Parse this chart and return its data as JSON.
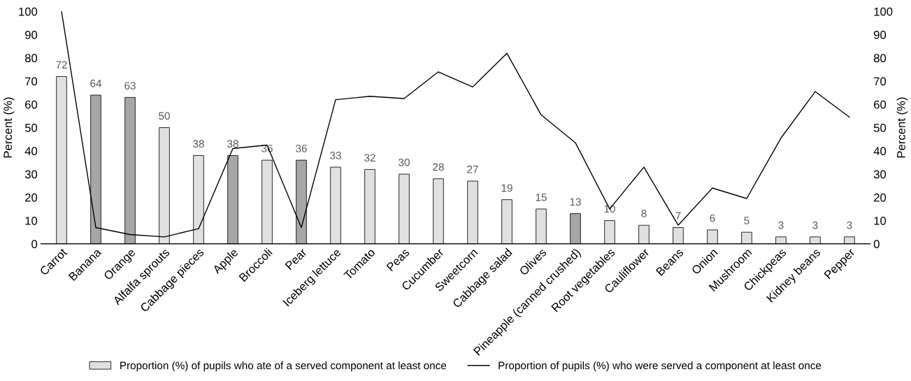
{
  "chart_data": {
    "type": "bar",
    "categories": [
      "Carrot",
      "Banana",
      "Orange",
      "Alfalfa sprouts",
      "Cabbage pieces",
      "Apple",
      "Broccoli",
      "Pear",
      "Iceberg lettuce",
      "Tomato",
      "Peas",
      "Cucumber",
      "Sweetcorn",
      "Cabbage salad",
      "Olives",
      "Pineapple (canned crushed)",
      "Root vegetables",
      "Cauliflower",
      "Beans",
      "Onion",
      "Mushroom",
      "Chickpeas",
      "Kidney beans",
      "Pepper"
    ],
    "series": [
      {
        "name": "Proportion (%) of pupils who ate of a served component at least once",
        "color": "#e0e0e0",
        "colors": [
          "#e0e0e0",
          "#a6a6a6",
          "#a6a6a6",
          "#e0e0e0",
          "#e0e0e0",
          "#a6a6a6",
          "#e0e0e0",
          "#a6a6a6",
          "#e0e0e0",
          "#e0e0e0",
          "#e0e0e0",
          "#e0e0e0",
          "#e0e0e0",
          "#e0e0e0",
          "#e0e0e0",
          "#a6a6a6",
          "#e0e0e0",
          "#e0e0e0",
          "#e0e0e0",
          "#e0e0e0",
          "#e0e0e0",
          "#e0e0e0",
          "#e0e0e0",
          "#e0e0e0"
        ],
        "values": [
          72,
          64,
          63,
          50,
          38,
          38,
          36,
          36,
          33,
          32,
          30,
          28,
          27,
          19,
          15,
          13,
          10,
          8,
          7,
          6,
          5,
          3,
          3,
          3
        ],
        "value_labels": [
          "72",
          "64",
          "63",
          "50",
          "38",
          "38",
          "36",
          "36",
          "33",
          "32",
          "30",
          "28",
          "27",
          "19",
          "15",
          "13",
          "10",
          "8",
          "7",
          "6",
          "5",
          "3",
          "3",
          "3"
        ]
      },
      {
        "name": "Proportion of pupils (%) who were served a component at least once",
        "type": "line",
        "color": "#000000",
        "values": [
          100,
          7,
          4,
          3,
          6.5,
          41,
          42.5,
          7,
          62,
          63.5,
          62.5,
          74,
          67.5,
          82,
          55.5,
          43.5,
          15,
          33,
          8,
          24,
          19.5,
          45.5,
          65.5,
          54.5
        ]
      }
    ],
    "ylabel": "Percent (%)",
    "y2label": "Percent (%)",
    "ylim": [
      0,
      100
    ],
    "yticks": [
      0,
      10,
      20,
      30,
      40,
      50,
      60,
      70,
      80,
      90,
      100
    ],
    "y2lim": [
      0,
      100
    ],
    "y2ticks": [
      0,
      10,
      20,
      30,
      40,
      50,
      60,
      70,
      80,
      90,
      100
    ],
    "legend": "bottom",
    "grid": false,
    "marker": "none",
    "line_style": "solid"
  }
}
